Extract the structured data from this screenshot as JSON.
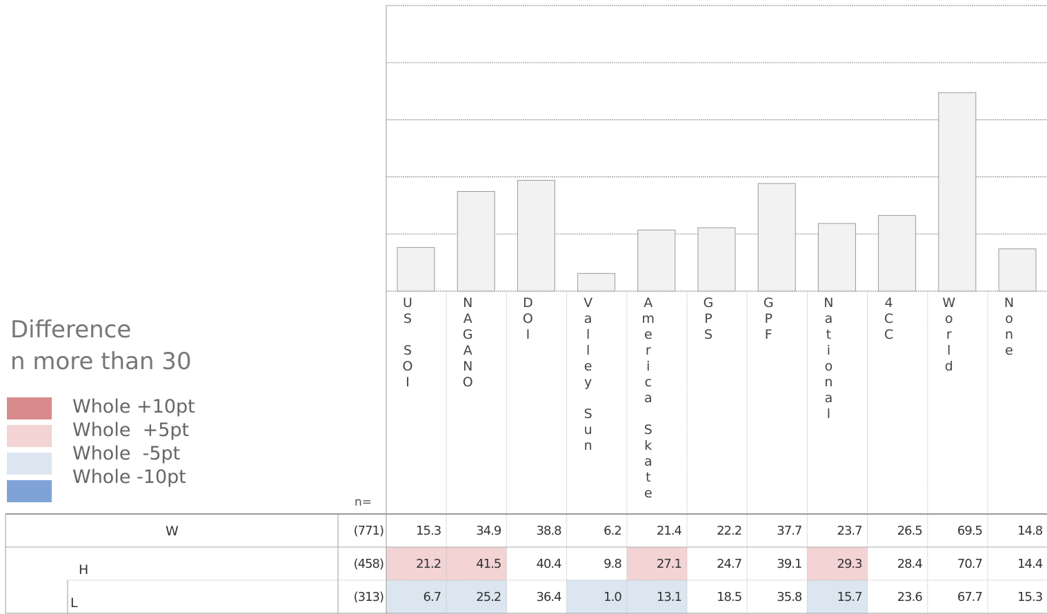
{
  "chart_data": {
    "type": "bar",
    "legend": {
      "title": "Difference",
      "subtitle": "n more than 30",
      "entries": [
        {
          "label": "Whole +10pt",
          "color": "#d98a8c"
        },
        {
          "label": "Whole  +5pt",
          "color": "#f3d3d4"
        },
        {
          "label": "Whole  -5pt",
          "color": "#dce6f1"
        },
        {
          "label": "Whole -10pt",
          "color": "#7fa3d6"
        }
      ]
    },
    "n_header": "n=",
    "categories": [
      "US SOI",
      "NAGANO",
      "DOI",
      "Valley Sun",
      "America Skate",
      "GPS",
      "GPF",
      "National",
      "4CC",
      "World",
      "None"
    ],
    "ylim": [
      0,
      100
    ],
    "yticks": [
      0,
      20,
      40,
      60,
      80,
      100
    ],
    "grid": true,
    "bar_color": "#f2f2f2",
    "bar_series": 0,
    "series": [
      {
        "name": "W",
        "n": 771,
        "n_label": "(771)",
        "values": [
          15.3,
          34.9,
          38.8,
          6.2,
          21.4,
          22.2,
          37.7,
          23.7,
          26.5,
          69.5,
          14.8
        ],
        "value_labels": [
          "15.3",
          "34.9",
          "38.8",
          "6.2",
          "21.4",
          "22.2",
          "37.7",
          "23.7",
          "26.5",
          "69.5",
          "14.8"
        ],
        "highlight": [
          null,
          null,
          null,
          null,
          null,
          null,
          null,
          null,
          null,
          null,
          null
        ]
      },
      {
        "name": "H",
        "n": 458,
        "n_label": "(458)",
        "values": [
          21.2,
          41.5,
          40.4,
          9.8,
          27.1,
          24.7,
          39.1,
          29.3,
          28.4,
          70.7,
          14.4
        ],
        "value_labels": [
          "21.2",
          "41.5",
          "40.4",
          "9.8",
          "27.1",
          "24.7",
          "39.1",
          "29.3",
          "28.4",
          "70.7",
          "14.4"
        ],
        "highlight": [
          1,
          1,
          null,
          null,
          1,
          null,
          null,
          1,
          null,
          null,
          null
        ]
      },
      {
        "name": "L",
        "n": 313,
        "n_label": "(313)",
        "values": [
          6.7,
          25.2,
          36.4,
          1.0,
          13.1,
          18.5,
          35.8,
          15.7,
          23.6,
          67.7,
          15.3
        ],
        "value_labels": [
          "6.7",
          "25.2",
          "36.4",
          "1.0",
          "13.1",
          "18.5",
          "35.8",
          "15.7",
          "23.6",
          "67.7",
          "15.3"
        ],
        "highlight": [
          2,
          2,
          null,
          2,
          2,
          null,
          null,
          2,
          null,
          null,
          null
        ]
      }
    ]
  }
}
